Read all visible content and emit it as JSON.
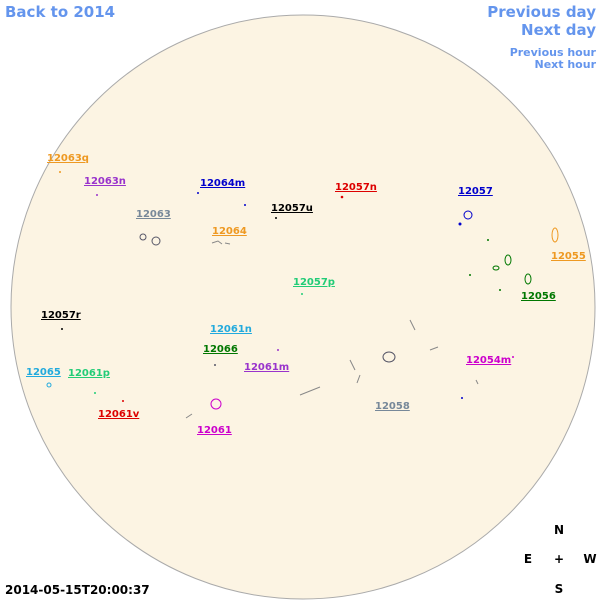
{
  "navigation": {
    "back": "Back to 2014",
    "previous_day": "Previous day",
    "next_day": "Next day",
    "previous_hour": "Previous hour",
    "next_hour": "Next hour"
  },
  "timestamp": "2014-05-15T20:00:37",
  "compass": {
    "north": "N",
    "east": "E",
    "center": "+",
    "west": "W",
    "south": "S"
  },
  "regions": [
    {
      "label": "12063q",
      "color": "#ee9922"
    },
    {
      "label": "12063n",
      "color": "#9933cc"
    },
    {
      "label": "12064m",
      "color": "#0000cc"
    },
    {
      "label": "12057n",
      "color": "#dd0000"
    },
    {
      "label": "12057",
      "color": "#0000cc"
    },
    {
      "label": "12063",
      "color": "#778899"
    },
    {
      "label": "12057u",
      "color": "#000000"
    },
    {
      "label": "12064",
      "color": "#ee9922"
    },
    {
      "label": "12055",
      "color": "#ee9922"
    },
    {
      "label": "12057p",
      "color": "#22cc77"
    },
    {
      "label": "12056",
      "color": "#007700"
    },
    {
      "label": "12057r",
      "color": "#000000"
    },
    {
      "label": "12061n",
      "color": "#22aadd"
    },
    {
      "label": "12066",
      "color": "#007700"
    },
    {
      "label": "12061m",
      "color": "#9933cc"
    },
    {
      "label": "12054m",
      "color": "#cc00cc"
    },
    {
      "label": "12065",
      "color": "#22aadd"
    },
    {
      "label": "12061p",
      "color": "#22cc77"
    },
    {
      "label": "12058",
      "color": "#778899"
    },
    {
      "label": "12061v",
      "color": "#dd0000"
    },
    {
      "label": "12061",
      "color": "#cc00cc"
    }
  ]
}
